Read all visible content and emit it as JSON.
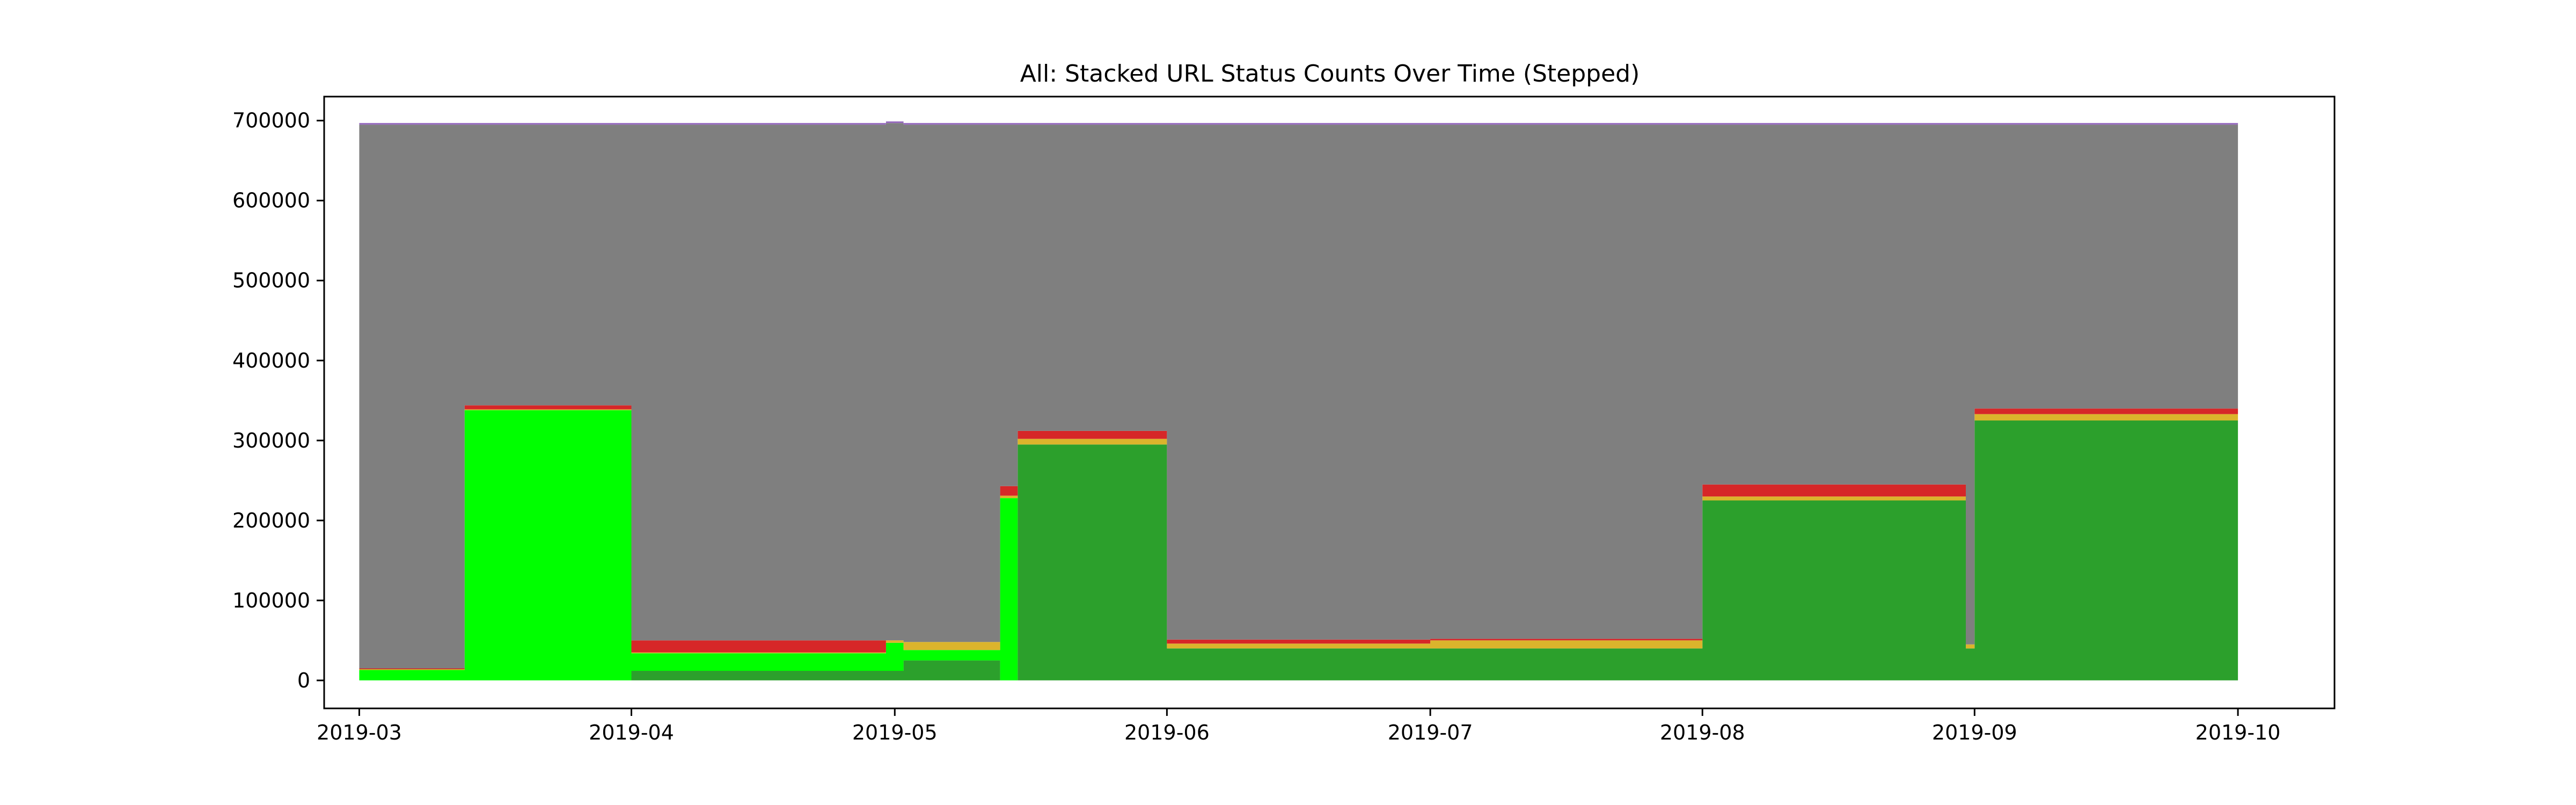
{
  "chart_data": {
    "type": "area",
    "stepped": true,
    "stacked": true,
    "title": "All: Stacked URL Status Counts Over Time (Stepped)",
    "xlabel": "",
    "ylabel": "",
    "xlim": [
      "2019-02-25",
      "2019-10-12"
    ],
    "ylim": [
      -35000,
      730000
    ],
    "grid": false,
    "legend": "none",
    "x_ticks": [
      "2019-03",
      "2019-04",
      "2019-05",
      "2019-06",
      "2019-07",
      "2019-08",
      "2019-09",
      "2019-10"
    ],
    "y_ticks": [
      0,
      100000,
      200000,
      300000,
      400000,
      500000,
      600000,
      700000
    ],
    "x": [
      "2019-03-01",
      "2019-03-13",
      "2019-04-01",
      "2019-04-30",
      "2019-05-02",
      "2019-05-13",
      "2019-05-15",
      "2019-06-01",
      "2019-07-01",
      "2019-08-01",
      "2019-08-31",
      "2019-09-01",
      "2019-10-01"
    ],
    "series": [
      {
        "color": "#2ca02c",
        "values": [
          0,
          0,
          12000,
          12000,
          25000,
          0,
          0,
          0,
          0,
          0,
          0,
          0,
          0
        ]
      },
      {
        "color": "#00ff00",
        "values": [
          13000,
          338000,
          22000,
          35000,
          13000,
          228000,
          0,
          0,
          0,
          0,
          0,
          0,
          0
        ]
      },
      {
        "color": "#2ca02c",
        "values": [
          0,
          0,
          0,
          0,
          0,
          0,
          295000,
          40000,
          40000,
          225000,
          40000,
          325000,
          15000
        ]
      },
      {
        "color": "#dbb42c",
        "values": [
          1000,
          1000,
          1000,
          3000,
          10000,
          3000,
          7000,
          6000,
          10000,
          5000,
          5000,
          8000,
          5000
        ]
      },
      {
        "color": "#d62728",
        "values": [
          1000,
          5000,
          15000,
          0,
          0,
          12000,
          10000,
          5000,
          2000,
          15000,
          0,
          7000,
          0
        ]
      },
      {
        "color": "#7f7f7f",
        "values": [
          680000,
          351000,
          645000,
          647000,
          647000,
          452000,
          383000,
          644000,
          643000,
          450000,
          650000,
          355000,
          675000
        ]
      },
      {
        "color": "#9467bd",
        "values": [
          2000,
          2000,
          2000,
          2000,
          2000,
          2000,
          2000,
          2000,
          2000,
          2000,
          2000,
          2000,
          2000
        ]
      }
    ]
  }
}
